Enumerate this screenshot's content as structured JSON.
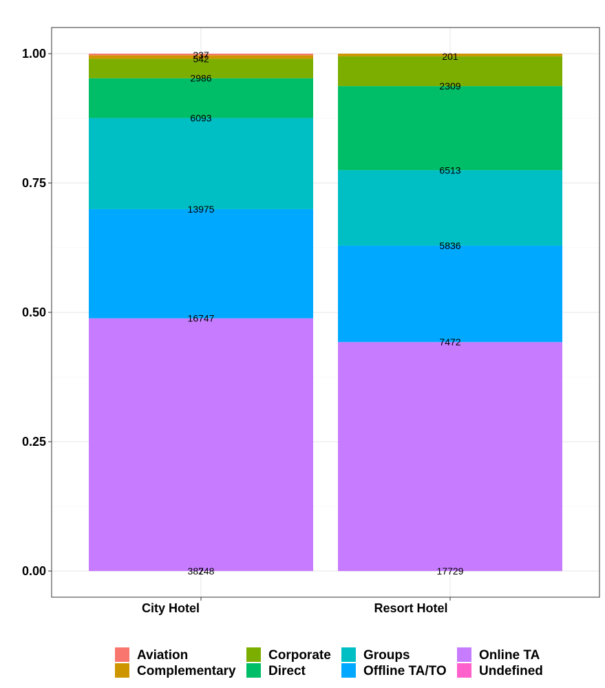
{
  "chart_data": {
    "type": "bar",
    "stacked": true,
    "normalized": true,
    "categories": [
      "City Hotel",
      "Resort Hotel"
    ],
    "ylim": [
      0,
      1
    ],
    "yticks": [
      "0.00",
      "0.25",
      "0.50",
      "0.75",
      "1.00"
    ],
    "ytick_values": [
      0,
      0.25,
      0.5,
      0.75,
      1
    ],
    "grid": true,
    "legend_position": "bottom",
    "stack_order": [
      "Undefined",
      "Online TA",
      "Offline TA/TO",
      "Groups",
      "Direct",
      "Corporate",
      "Complementary",
      "Aviation"
    ],
    "series": [
      {
        "name": "Aviation",
        "color": "#F8766D",
        "values": [
          237,
          0
        ],
        "labels": [
          "237",
          ""
        ]
      },
      {
        "name": "Complementary",
        "color": "#CD9600",
        "values": [
          542,
          201
        ],
        "labels": [
          "542",
          "201"
        ]
      },
      {
        "name": "Corporate",
        "color": "#7CAE00",
        "values": [
          2986,
          2309
        ],
        "labels": [
          "2986",
          "2309"
        ]
      },
      {
        "name": "Direct",
        "color": "#00BE67",
        "values": [
          6093,
          6513
        ],
        "labels": [
          "6093",
          "6513"
        ]
      },
      {
        "name": "Groups",
        "color": "#00BFC4",
        "values": [
          13975,
          5836
        ],
        "labels": [
          "13975",
          "5836"
        ]
      },
      {
        "name": "Offline TA/TO",
        "color": "#00A9FF",
        "values": [
          16747,
          7472
        ],
        "labels": [
          "16747",
          "7472"
        ]
      },
      {
        "name": "Online TA",
        "color": "#C77CFF",
        "values": [
          38748,
          17729
        ],
        "labels": [
          "38748",
          "17729"
        ]
      },
      {
        "name": "Undefined",
        "color": "#FF61CC",
        "values": [
          2,
          0
        ],
        "labels": [
          "2",
          ""
        ]
      }
    ]
  }
}
